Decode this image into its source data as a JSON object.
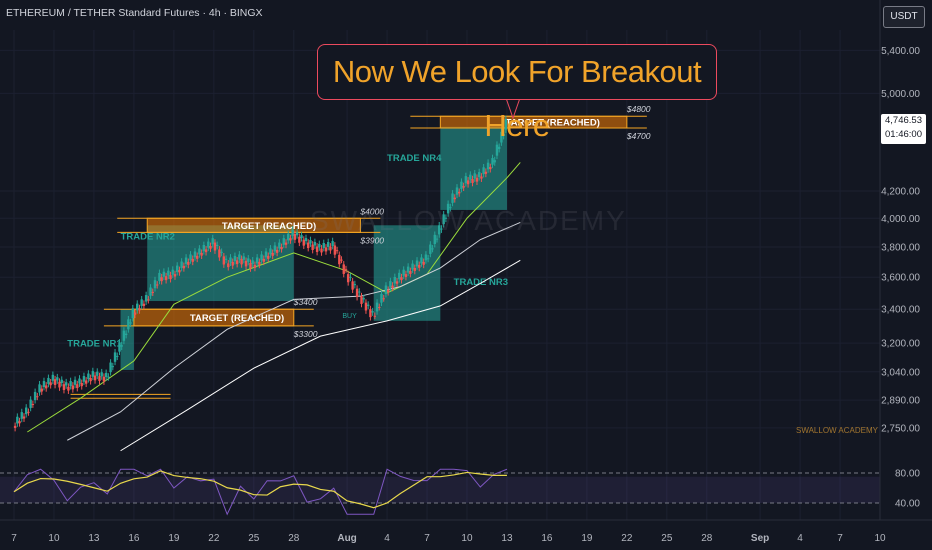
{
  "header": {
    "title": "ETHEREUM / TETHER Standard Futures · 4h · BINGX",
    "currency_button": "USDT"
  },
  "callout": {
    "text": "Now We Look For Breakout Here"
  },
  "price_tag": {
    "price": "4,746.53",
    "countdown": "01:46:00"
  },
  "watermark": "SWALLOW ACADEMY",
  "brand": "SWALLOW ACADEMY",
  "chart_data": {
    "type": "candlestick",
    "price_axis": {
      "ticks": [
        {
          "label": "5,400.00",
          "value": 5400
        },
        {
          "label": "5,000.00",
          "value": 5000
        },
        {
          "label": "4,200.00",
          "value": 4200
        },
        {
          "label": "4,000.00",
          "value": 4000
        },
        {
          "label": "3,800.00",
          "value": 3800
        },
        {
          "label": "3,600.00",
          "value": 3600
        },
        {
          "label": "3,400.00",
          "value": 3400
        },
        {
          "label": "3,200.00",
          "value": 3200
        },
        {
          "label": "3,040.00",
          "value": 3040
        },
        {
          "label": "2,890.00",
          "value": 2890
        },
        {
          "label": "2,750.00",
          "value": 2750
        }
      ],
      "scale": "log",
      "range": [
        2620,
        5600
      ]
    },
    "time_axis": {
      "ticks": [
        "7",
        "10",
        "13",
        "16",
        "19",
        "22",
        "25",
        "28",
        "Aug",
        "4",
        "7",
        "10",
        "13",
        "16",
        "19",
        "22",
        "25",
        "28",
        "Sep",
        "4",
        "7",
        "10"
      ],
      "range": [
        "Jul 7",
        "Sep 10"
      ]
    },
    "price_series": {
      "points": [
        {
          "date": "Jul 7",
          "price": 2760
        },
        {
          "date": "Jul 8",
          "price": 2830
        },
        {
          "date": "Jul 9",
          "price": 2950
        },
        {
          "date": "Jul 10",
          "price": 3000
        },
        {
          "date": "Jul 11",
          "price": 2960
        },
        {
          "date": "Jul 12",
          "price": 2980
        },
        {
          "date": "Jul 13",
          "price": 3020
        },
        {
          "date": "Jul 14",
          "price": 3010
        },
        {
          "date": "Jul 15",
          "price": 3180
        },
        {
          "date": "Jul 16",
          "price": 3380
        },
        {
          "date": "Jul 17",
          "price": 3460
        },
        {
          "date": "Jul 18",
          "price": 3600
        },
        {
          "date": "Jul 19",
          "price": 3620
        },
        {
          "date": "Jul 20",
          "price": 3700
        },
        {
          "date": "Jul 21",
          "price": 3760
        },
        {
          "date": "Jul 22",
          "price": 3830
        },
        {
          "date": "Jul 23",
          "price": 3690
        },
        {
          "date": "Jul 24",
          "price": 3720
        },
        {
          "date": "Jul 25",
          "price": 3680
        },
        {
          "date": "Jul 26",
          "price": 3740
        },
        {
          "date": "Jul 27",
          "price": 3800
        },
        {
          "date": "Jul 28",
          "price": 3890
        },
        {
          "date": "Jul 29",
          "price": 3830
        },
        {
          "date": "Jul 30",
          "price": 3790
        },
        {
          "date": "Jul 31",
          "price": 3810
        },
        {
          "date": "Aug 1",
          "price": 3620
        },
        {
          "date": "Aug 2",
          "price": 3480
        },
        {
          "date": "Aug 3",
          "price": 3360
        },
        {
          "date": "Aug 4",
          "price": 3520
        },
        {
          "date": "Aug 5",
          "price": 3600
        },
        {
          "date": "Aug 6",
          "price": 3660
        },
        {
          "date": "Aug 7",
          "price": 3720
        },
        {
          "date": "Aug 8",
          "price": 3920
        },
        {
          "date": "Aug 9",
          "price": 4150
        },
        {
          "date": "Aug 10",
          "price": 4280
        },
        {
          "date": "Aug 11",
          "price": 4310
        },
        {
          "date": "Aug 12",
          "price": 4420
        },
        {
          "date": "Aug 13",
          "price": 4740
        }
      ]
    },
    "moving_averages": [
      {
        "color": "#9bdc3c",
        "points": [
          {
            "date": "Jul 8",
            "price": 2730
          },
          {
            "date": "Jul 12",
            "price": 2900
          },
          {
            "date": "Jul 16",
            "price": 3100
          },
          {
            "date": "Jul 19",
            "price": 3430
          },
          {
            "date": "Jul 23",
            "price": 3600
          },
          {
            "date": "Jul 28",
            "price": 3760
          },
          {
            "date": "Aug 1",
            "price": 3640
          },
          {
            "date": "Aug 4",
            "price": 3500
          },
          {
            "date": "Aug 7",
            "price": 3620
          },
          {
            "date": "Aug 10",
            "price": 4000
          },
          {
            "date": "Aug 13",
            "price": 4300
          },
          {
            "date": "Aug 14",
            "price": 4420
          }
        ]
      },
      {
        "color": "#cfd2d9",
        "points": [
          {
            "date": "Jul 11",
            "price": 2690
          },
          {
            "date": "Jul 15",
            "price": 2830
          },
          {
            "date": "Jul 19",
            "price": 3060
          },
          {
            "date": "Jul 23",
            "price": 3280
          },
          {
            "date": "Jul 28",
            "price": 3460
          },
          {
            "date": "Aug 2",
            "price": 3480
          },
          {
            "date": "Aug 5",
            "price": 3540
          },
          {
            "date": "Aug 8",
            "price": 3660
          },
          {
            "date": "Aug 11",
            "price": 3850
          },
          {
            "date": "Aug 14",
            "price": 3970
          }
        ]
      },
      {
        "color": "#ffffff",
        "points": [
          {
            "date": "Jul 15",
            "price": 2640
          },
          {
            "date": "Jul 20",
            "price": 2840
          },
          {
            "date": "Jul 25",
            "price": 3060
          },
          {
            "date": "Jul 30",
            "price": 3240
          },
          {
            "date": "Aug 4",
            "price": 3330
          },
          {
            "date": "Aug 8",
            "price": 3420
          },
          {
            "date": "Aug 11",
            "price": 3560
          },
          {
            "date": "Aug 14",
            "price": 3710
          }
        ]
      }
    ],
    "trade_zones": [
      {
        "label": "TRADE NR1",
        "from": "Jul 15",
        "to": "Jul 16",
        "low": 3050,
        "high": 3400,
        "label_date": "Jul 11",
        "label_price": 3180
      },
      {
        "label": "TRADE NR2",
        "from": "Jul 17",
        "to": "Jul 28",
        "low": 3450,
        "high": 3950,
        "label_date": "Jul 15",
        "label_price": 3850
      },
      {
        "label": "TRADE NR3",
        "from": "Aug 3",
        "to": "Aug 8",
        "low": 3330,
        "high": 3950,
        "label_date": "Aug 9",
        "label_price": 3550
      },
      {
        "label": "TRADE NR4",
        "from": "Aug 8",
        "to": "Aug 13",
        "low": 4060,
        "high": 4710,
        "label_date": "Aug 4",
        "label_price": 4430
      }
    ],
    "targets": [
      {
        "label": "TARGET (REACHED)",
        "from": "Jul 16",
        "to": "Jul 28",
        "low": 3300,
        "high": 3400,
        "upper_label": "$3400",
        "lower_label": "$3300"
      },
      {
        "label": "TARGET (REACHED)",
        "from": "Jul 17",
        "to": "Aug 2",
        "low": 3900,
        "high": 4000,
        "upper_label": "$4000",
        "lower_label": "$3900"
      },
      {
        "label": "TARGET (REACHED)",
        "from": "Aug 8",
        "to": "Aug 22",
        "low": 4700,
        "high": 4800,
        "upper_label": "$4800",
        "lower_label": "$4700"
      }
    ],
    "support_lines": [
      {
        "from": "Jul 15",
        "to": "Jul 18",
        "price": 2920
      },
      {
        "from": "Jul 15",
        "to": "Jul 18",
        "price": 2900
      }
    ],
    "buy_label": "BUY",
    "buy_point": {
      "date": "Aug 2",
      "price": 3370
    },
    "rsi": {
      "levels": [
        80,
        40
      ],
      "range": [
        20,
        100
      ],
      "tick_labels": [
        "80.00",
        "40.00"
      ],
      "upper_band": 75,
      "lower_band": 40
    }
  }
}
